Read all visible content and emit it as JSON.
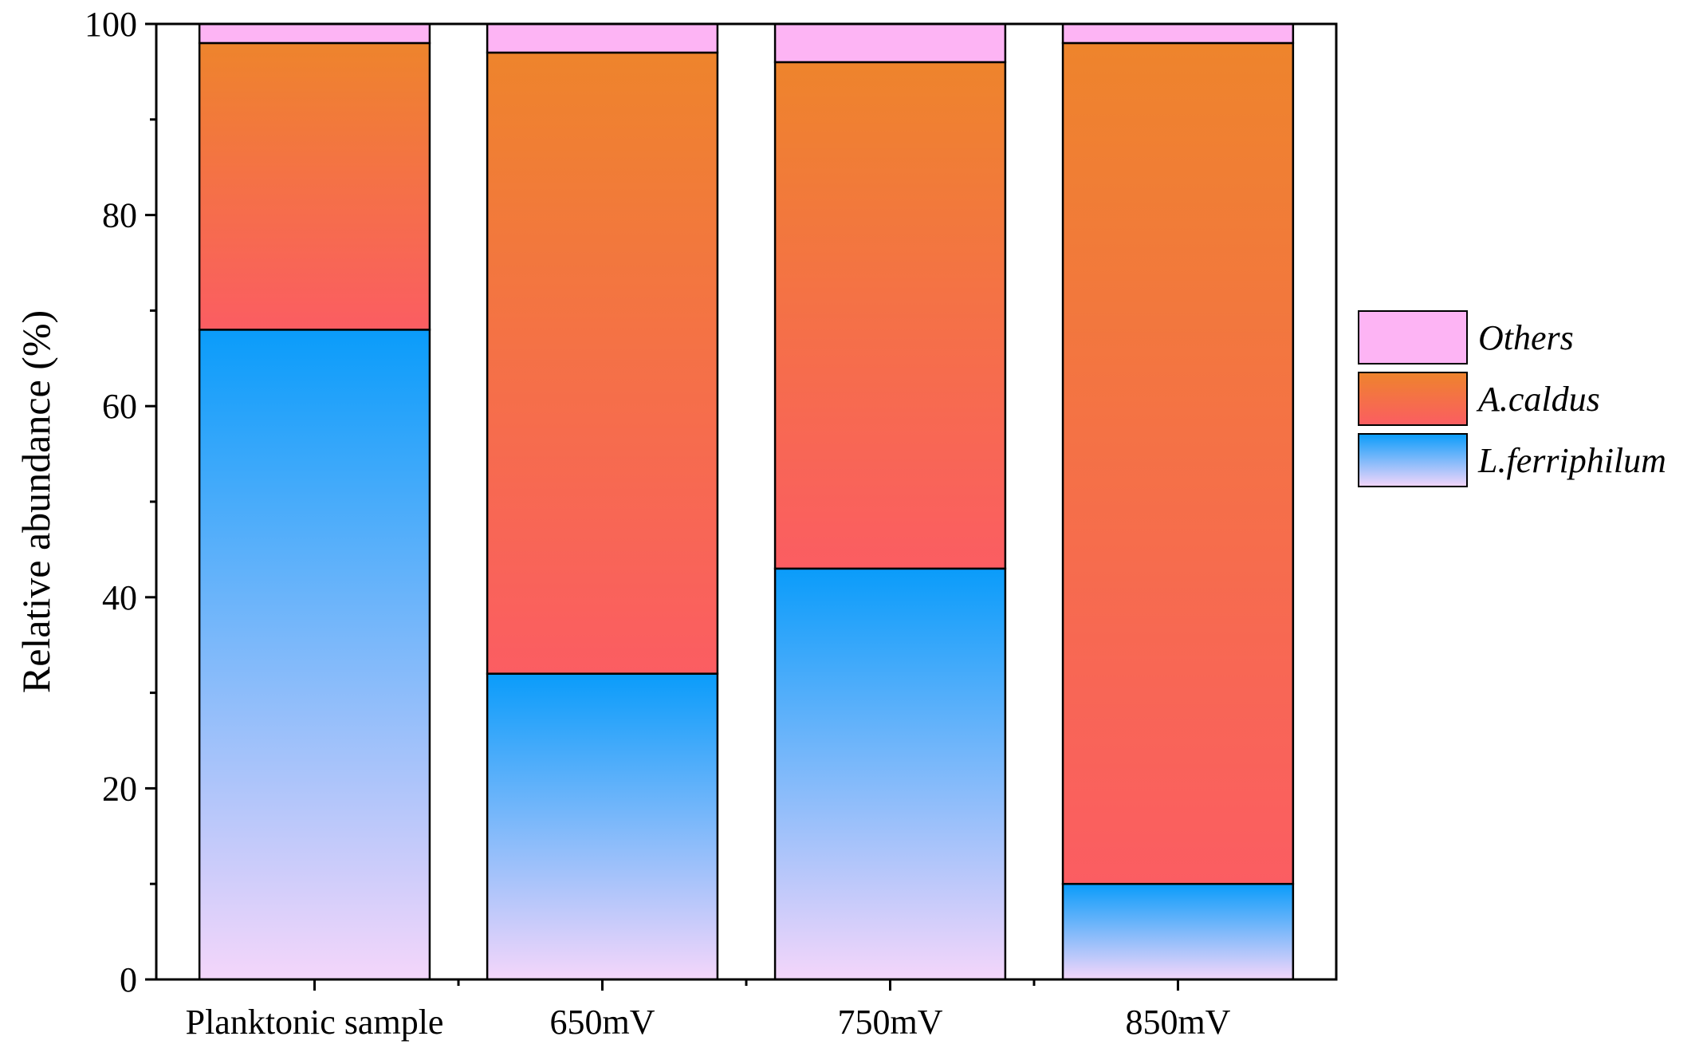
{
  "chart_data": {
    "type": "bar",
    "stacked": true,
    "title": "",
    "xlabel": "",
    "ylabel": "Relative abundance (%)",
    "ylim": [
      0,
      100
    ],
    "yticks": [
      0,
      20,
      40,
      60,
      80,
      100
    ],
    "categories": [
      "Planktonic sample",
      "650mV",
      "750mV",
      "850mV"
    ],
    "series": [
      {
        "name": "L.ferriphilum",
        "values": [
          68,
          32,
          43,
          10
        ],
        "gradient": [
          "#0a9cfa",
          "#f4d6fa"
        ]
      },
      {
        "name": "A.caldus",
        "values": [
          30,
          65,
          53,
          88
        ],
        "gradient": [
          "#ee842c",
          "#fb5d62"
        ]
      },
      {
        "name": "Others",
        "values": [
          2,
          3,
          4,
          2
        ],
        "color": "#fdb4f4"
      }
    ],
    "legend": {
      "position": "right",
      "order": [
        "Others",
        "A.caldus",
        "L.ferriphilum"
      ]
    },
    "grid": false
  }
}
